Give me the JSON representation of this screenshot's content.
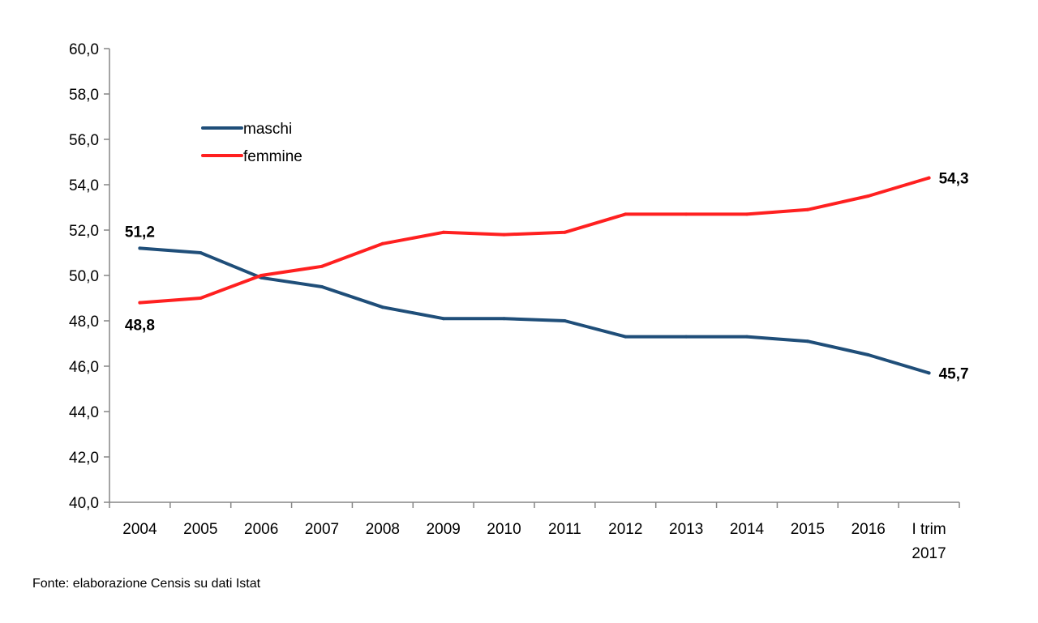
{
  "source_note": "Fonte: elaborazione Censis su dati Istat",
  "chart_data": {
    "type": "line",
    "categories": [
      "2004",
      "2005",
      "2006",
      "2007",
      "2008",
      "2009",
      "2010",
      "2011",
      "2012",
      "2013",
      "2014",
      "2015",
      "2016",
      [
        "I trim",
        "2017"
      ]
    ],
    "ylim": [
      40.0,
      60.0
    ],
    "ytick_step": 2.0,
    "ytick_labels": [
      "40,0",
      "42,0",
      "44,0",
      "46,0",
      "48,0",
      "50,0",
      "52,0",
      "54,0",
      "56,0",
      "58,0",
      "60,0"
    ],
    "grid": false,
    "legend_position": "upper-left",
    "series": [
      {
        "name": "maschi",
        "color": "#1F4E79",
        "values": [
          51.2,
          51.0,
          49.9,
          49.5,
          48.6,
          48.1,
          48.1,
          48.0,
          47.3,
          47.3,
          47.3,
          47.1,
          46.5,
          45.7
        ]
      },
      {
        "name": "femmine",
        "color": "#FF2020",
        "values": [
          48.8,
          49.0,
          50.0,
          50.4,
          51.4,
          51.9,
          51.8,
          51.9,
          52.7,
          52.7,
          52.7,
          52.9,
          53.5,
          54.3
        ]
      }
    ],
    "data_labels": [
      {
        "series": 0,
        "index": 0,
        "text": "51,2",
        "placement": "above"
      },
      {
        "series": 1,
        "index": 0,
        "text": "48,8",
        "placement": "below"
      },
      {
        "series": 1,
        "index": 13,
        "text": "54,3",
        "placement": "right"
      },
      {
        "series": 0,
        "index": 13,
        "text": "45,7",
        "placement": "right"
      }
    ]
  }
}
